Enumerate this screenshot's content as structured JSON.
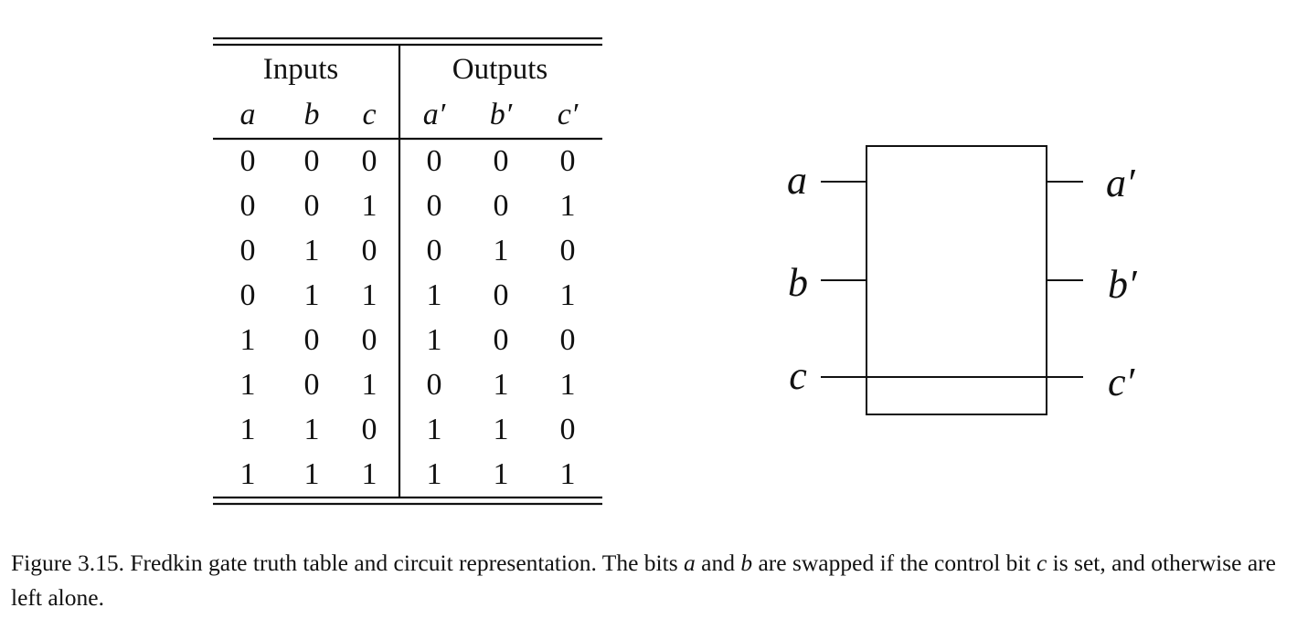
{
  "figure": {
    "truth_table": {
      "input_group_header": "Inputs",
      "output_group_header": "Outputs",
      "input_columns": [
        "a",
        "b",
        "c"
      ],
      "output_columns": [
        "a′",
        "b′",
        "c′"
      ],
      "rows": [
        [
          0,
          0,
          0,
          0,
          0,
          0
        ],
        [
          0,
          0,
          1,
          0,
          0,
          1
        ],
        [
          0,
          1,
          0,
          0,
          1,
          0
        ],
        [
          0,
          1,
          1,
          1,
          0,
          1
        ],
        [
          1,
          0,
          0,
          1,
          0,
          0
        ],
        [
          1,
          0,
          1,
          0,
          1,
          1
        ],
        [
          1,
          1,
          0,
          1,
          1,
          0
        ],
        [
          1,
          1,
          1,
          1,
          1,
          1
        ]
      ]
    },
    "circuit": {
      "input_labels": [
        "a",
        "b",
        "c"
      ],
      "output_labels": [
        "a′",
        "b′",
        "c′"
      ]
    },
    "caption": {
      "prefix": "Figure 3.15. Fredkin gate truth table and circuit representation. The bits ",
      "var_a": "a",
      "and": " and ",
      "var_b": "b",
      "middle": " are swapped if the control bit ",
      "var_c": "c",
      "suffix": " is set, and otherwise are left alone."
    }
  }
}
